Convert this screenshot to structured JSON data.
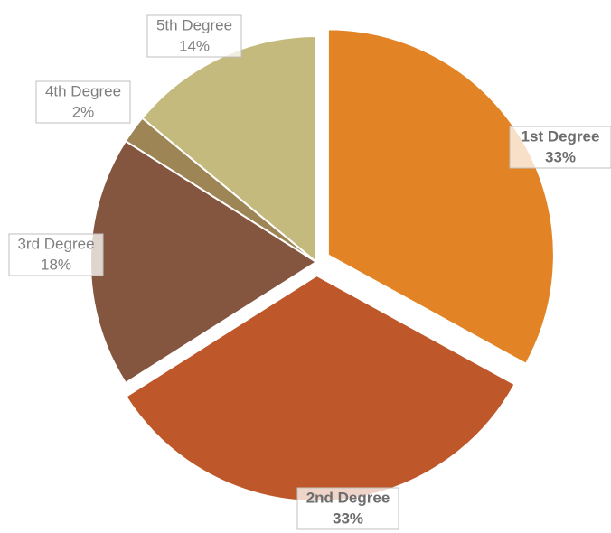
{
  "chart_data": {
    "type": "pie",
    "categories": [
      "1st Degree",
      "2nd Degree",
      "3rd Degree",
      "4th Degree",
      "5th Degree"
    ],
    "values": [
      33,
      33,
      18,
      2,
      14
    ],
    "value_labels": [
      "33%",
      "33%",
      "18%",
      "2%",
      "14%"
    ],
    "colors": [
      "#e28426",
      "#be572a",
      "#845640",
      "#9e8556",
      "#c4ba7e"
    ]
  }
}
